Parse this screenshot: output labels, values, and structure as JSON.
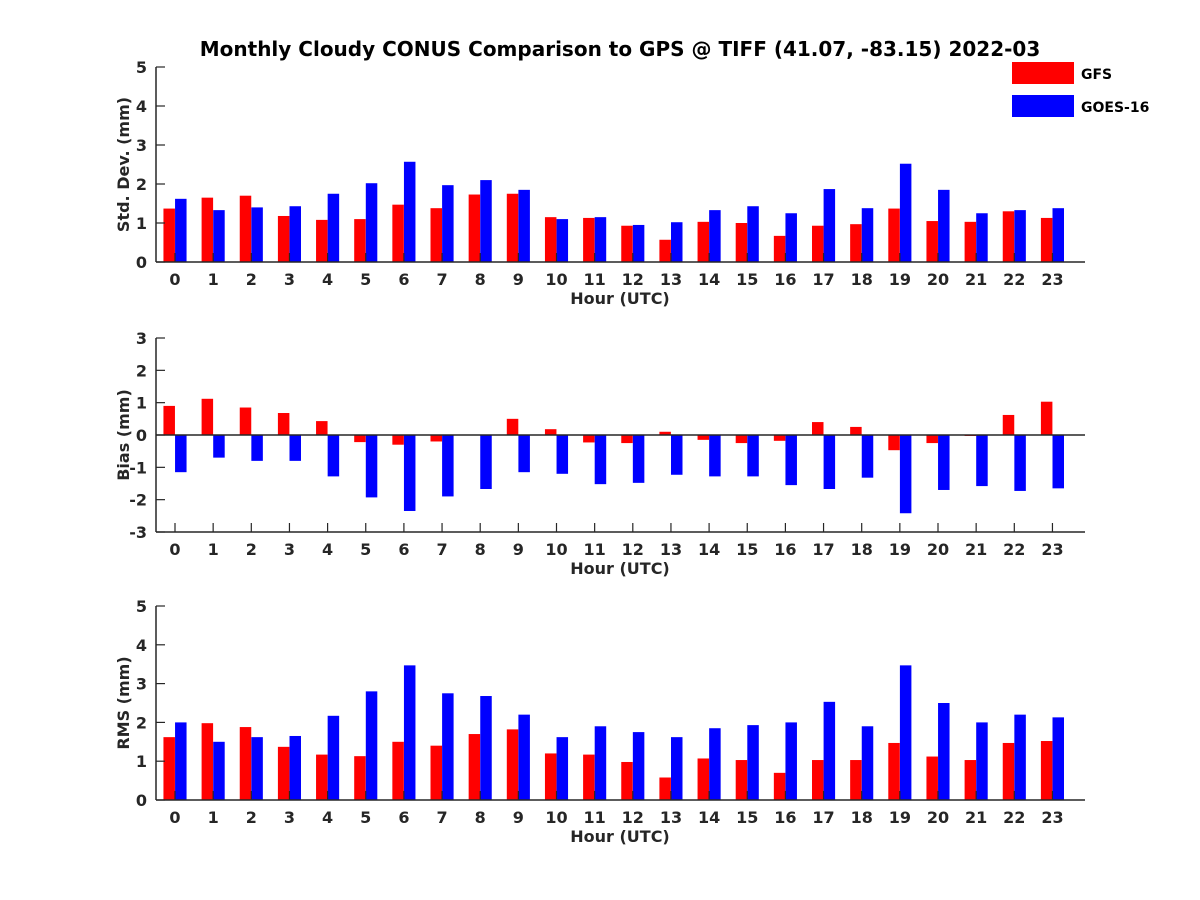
{
  "chart_data": {
    "title": "Monthly Cloudy CONUS Comparison to GPS @ TIFF (41.07, -83.15) 2022-03",
    "legend": {
      "placement": "top-right",
      "entries": [
        {
          "name": "GFS",
          "color": "#ff0000"
        },
        {
          "name": "GOES-16",
          "color": "#0000ff"
        }
      ]
    },
    "categories": [
      "0",
      "1",
      "2",
      "3",
      "4",
      "5",
      "6",
      "7",
      "8",
      "9",
      "10",
      "11",
      "12",
      "13",
      "14",
      "15",
      "16",
      "17",
      "18",
      "19",
      "20",
      "21",
      "22",
      "23"
    ],
    "panels": [
      {
        "type": "bar",
        "xlabel": "Hour (UTC)",
        "ylabel": "Std. Dev. (mm)",
        "ylim": [
          0,
          5
        ],
        "yticks": [
          "0",
          "1",
          "2",
          "3",
          "4",
          "5"
        ],
        "series": [
          {
            "name": "GFS",
            "color": "#ff0000",
            "values": [
              1.37,
              1.65,
              1.7,
              1.18,
              1.08,
              1.1,
              1.47,
              1.38,
              1.73,
              1.75,
              1.15,
              1.13,
              0.93,
              0.57,
              1.03,
              1.0,
              0.67,
              0.93,
              0.97,
              1.37,
              1.05,
              1.03,
              1.3,
              1.13
            ]
          },
          {
            "name": "GOES-16",
            "color": "#0000ff",
            "values": [
              1.62,
              1.33,
              1.4,
              1.43,
              1.75,
              2.02,
              2.57,
              1.97,
              2.1,
              1.85,
              1.1,
              1.15,
              0.95,
              1.02,
              1.33,
              1.43,
              1.25,
              1.87,
              1.38,
              2.52,
              1.85,
              1.25,
              1.33,
              1.38
            ]
          }
        ]
      },
      {
        "type": "bar",
        "xlabel": "Hour (UTC)",
        "ylabel": "Bias (mm)",
        "ylim": [
          -3,
          3
        ],
        "yticks": [
          "-3",
          "-2",
          "-1",
          "0",
          "1",
          "2",
          "3"
        ],
        "series": [
          {
            "name": "GFS",
            "color": "#ff0000",
            "values": [
              0.9,
              1.12,
              0.85,
              0.68,
              0.43,
              -0.22,
              -0.3,
              -0.2,
              0.0,
              0.5,
              0.18,
              -0.23,
              -0.25,
              0.1,
              -0.15,
              -0.25,
              -0.18,
              0.4,
              0.25,
              -0.47,
              -0.25,
              -0.03,
              0.62,
              1.03
            ]
          },
          {
            "name": "GOES-16",
            "color": "#0000ff",
            "values": [
              -1.15,
              -0.7,
              -0.8,
              -0.8,
              -1.28,
              -1.93,
              -2.35,
              -1.9,
              -1.67,
              -1.15,
              -1.2,
              -1.52,
              -1.48,
              -1.23,
              -1.28,
              -1.28,
              -1.55,
              -1.67,
              -1.32,
              -2.42,
              -1.7,
              -1.58,
              -1.73,
              -1.65
            ]
          }
        ]
      },
      {
        "type": "bar",
        "xlabel": "Hour (UTC)",
        "ylabel": "RMS (mm)",
        "ylim": [
          0,
          5
        ],
        "yticks": [
          "0",
          "1",
          "2",
          "3",
          "4",
          "5"
        ],
        "series": [
          {
            "name": "GFS",
            "color": "#ff0000",
            "values": [
              1.62,
              1.98,
              1.88,
              1.37,
              1.17,
              1.13,
              1.5,
              1.4,
              1.7,
              1.82,
              1.2,
              1.17,
              0.98,
              0.58,
              1.07,
              1.03,
              0.7,
              1.03,
              1.03,
              1.47,
              1.12,
              1.03,
              1.47,
              1.52
            ]
          },
          {
            "name": "GOES-16",
            "color": "#0000ff",
            "values": [
              2.0,
              1.5,
              1.62,
              1.65,
              2.17,
              2.8,
              3.47,
              2.75,
              2.68,
              2.2,
              1.62,
              1.9,
              1.75,
              1.62,
              1.85,
              1.93,
              2.0,
              2.53,
              1.9,
              3.47,
              2.5,
              2.0,
              2.2,
              2.13
            ]
          }
        ]
      }
    ]
  }
}
